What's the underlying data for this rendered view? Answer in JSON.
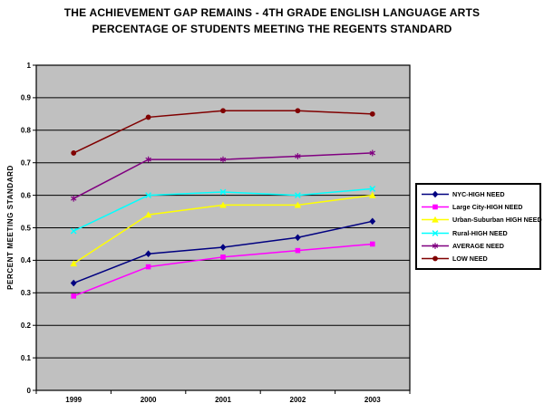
{
  "chart_data": {
    "type": "line",
    "title": "THE ACHIEVEMENT GAP REMAINS - 4TH GRADE ENGLISH LANGUAGE ARTS",
    "subtitle": "PERCENTAGE OF STUDENTS MEETING THE REGENTS STANDARD",
    "ylabel": "PERCENT MEETING STANDARD",
    "xlabel": "",
    "categories": [
      "1999",
      "2000",
      "2001",
      "2002",
      "2003"
    ],
    "ylim": [
      0,
      1
    ],
    "ytick_step": 0.1,
    "ytick_labels": [
      "0",
      "0.1",
      "0.2",
      "0.3",
      "0.4",
      "0.5",
      "0.6",
      "0.7",
      "0.8",
      "0.9",
      "1"
    ],
    "grid": true,
    "legend_position": "right",
    "colors": {
      "background": "#ffffff",
      "plot_background": "#c0c0c0",
      "gridline": "#000000",
      "axis": "#000000",
      "text": "#000000",
      "legend_border": "#000000"
    },
    "series": [
      {
        "name": "NYC-HIGH NEED",
        "color": "#000080",
        "marker": "diamond",
        "values": [
          0.33,
          0.42,
          0.44,
          0.47,
          0.52
        ]
      },
      {
        "name": "Large City-HIGH NEED",
        "color": "#ff00ff",
        "marker": "square",
        "values": [
          0.29,
          0.38,
          0.41,
          0.43,
          0.45
        ]
      },
      {
        "name": "Urban-Suburban HIGH NEED",
        "color": "#ffff00",
        "marker": "triangle",
        "values": [
          0.39,
          0.54,
          0.57,
          0.57,
          0.6
        ]
      },
      {
        "name": "Rural-HIGH NEED",
        "color": "#00ffff",
        "marker": "x",
        "values": [
          0.49,
          0.6,
          0.61,
          0.6,
          0.62
        ]
      },
      {
        "name": "AVERAGE NEED",
        "color": "#800080",
        "marker": "asterisk",
        "values": [
          0.59,
          0.71,
          0.71,
          0.72,
          0.73
        ]
      },
      {
        "name": "LOW NEED",
        "color": "#800000",
        "marker": "circle",
        "values": [
          0.73,
          0.84,
          0.86,
          0.86,
          0.85
        ]
      }
    ]
  }
}
